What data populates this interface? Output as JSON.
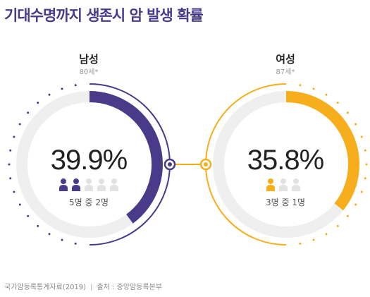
{
  "title": "기대수명까지 생존시 암 발생 확률",
  "colors": {
    "male": "#4a3b8a",
    "female": "#f6ae1c",
    "track": "#efefef",
    "inactive_person": "#e2e2e2",
    "text_dark": "#222222",
    "text_muted": "#999999"
  },
  "chart_data": [
    {
      "type": "pie",
      "label": "남성",
      "sublabel": "80세*",
      "value_percent": 39.9,
      "value_label": "39.9%",
      "people_highlighted": 2,
      "people_total": 5,
      "ratio_label": "5명 중 2명"
    },
    {
      "type": "pie",
      "label": "여성",
      "sublabel": "87세*",
      "value_percent": 35.8,
      "value_label": "35.8%",
      "people_highlighted": 1,
      "people_total": 3,
      "ratio_label": "3명 중 1명"
    }
  ],
  "footer": {
    "source_left": "국가암등록통계자료(2019)",
    "separator": "|",
    "source_right": "출처 : 중앙암등록본부"
  }
}
